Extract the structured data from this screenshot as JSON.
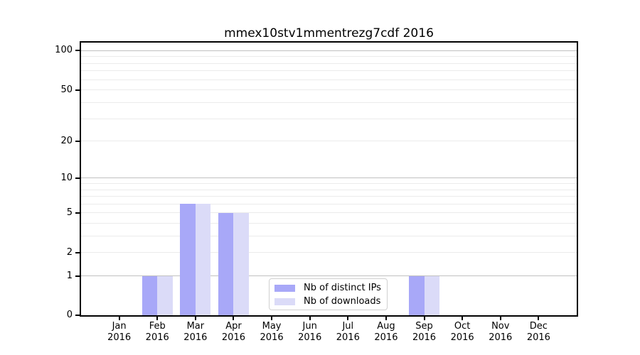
{
  "title": "mmex10stv1mmentrezg7cdf 2016",
  "chart_data": {
    "type": "bar",
    "title": "mmex10stv1mmentrezg7cdf 2016",
    "categories": [
      "Jan",
      "Feb",
      "Mar",
      "Apr",
      "May",
      "Jun",
      "Jul",
      "Aug",
      "Sep",
      "Oct",
      "Nov",
      "Dec"
    ],
    "year": "2016",
    "series": [
      {
        "name": "Nb of distinct IPs",
        "color": "#a8a8f8",
        "values": [
          0,
          1,
          6,
          5,
          0,
          0,
          0,
          0,
          1,
          0,
          0,
          0
        ]
      },
      {
        "name": "Nb of downloads",
        "color": "#dbdbf8",
        "values": [
          0,
          1,
          6,
          5,
          0,
          0,
          0,
          0,
          1,
          0,
          0,
          0
        ]
      }
    ],
    "yscale": "log1p",
    "ylim": [
      0,
      115
    ],
    "ytick_labels": [
      0,
      1,
      2,
      5,
      10,
      20,
      50,
      100
    ],
    "major_gridline_values": [
      1,
      10,
      100
    ],
    "minor_gridline_values": [
      2,
      3,
      4,
      5,
      6,
      7,
      8,
      9,
      20,
      30,
      40,
      50,
      60,
      70,
      80,
      90
    ],
    "grid": true,
    "legend_position": "lower center"
  },
  "legend": {
    "items": [
      {
        "label": "Nb of distinct IPs",
        "color": "#a8a8f8"
      },
      {
        "label": "Nb of downloads",
        "color": "#dbdbf8"
      }
    ]
  },
  "colors": {
    "background": "#ffffff",
    "spine": "#000000",
    "major_grid": "#c0c0c0",
    "minor_grid": "#ebebeb",
    "bar_distinct_ips": "#a8a8f8",
    "bar_downloads": "#dbdbf8",
    "text": "#000000",
    "legend_border": "#d0d0d0"
  }
}
